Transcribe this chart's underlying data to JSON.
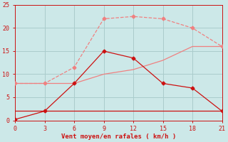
{
  "xlabel": "Vent moyen/en rafales ( km/h )",
  "xlim": [
    0,
    21
  ],
  "ylim": [
    0,
    25
  ],
  "xticks": [
    0,
    3,
    6,
    9,
    12,
    15,
    18,
    21
  ],
  "yticks": [
    0,
    5,
    10,
    15,
    20,
    25
  ],
  "bg_color": "#cce8e8",
  "grid_color": "#aacccc",
  "line1_x": [
    0,
    3,
    6,
    9,
    12,
    15,
    18,
    21
  ],
  "line1_y": [
    8,
    8,
    11.5,
    22,
    22.5,
    22,
    20,
    16
  ],
  "line1_color": "#f08080",
  "line1_style": "--",
  "line1_marker": "D",
  "line1_ms": 2.5,
  "line2_x": [
    0,
    3,
    6,
    9,
    12,
    15,
    18,
    21
  ],
  "line2_y": [
    8,
    8,
    8,
    10,
    11,
    13,
    16,
    16
  ],
  "line2_color": "#f08080",
  "line2_style": "-",
  "line3_x": [
    0,
    3,
    6,
    9,
    12,
    15,
    18,
    21
  ],
  "line3_y": [
    0.2,
    2,
    8,
    15,
    13.5,
    8,
    7,
    2
  ],
  "line3_color": "#cc1111",
  "line3_style": "-",
  "line3_marker": "D",
  "line3_ms": 2.5,
  "line4_x": [
    0,
    21
  ],
  "line4_y": [
    2,
    2
  ],
  "line4_color": "#cc1111",
  "line4_style": "-",
  "axis_label_color": "#cc1111",
  "tick_color": "#cc1111"
}
